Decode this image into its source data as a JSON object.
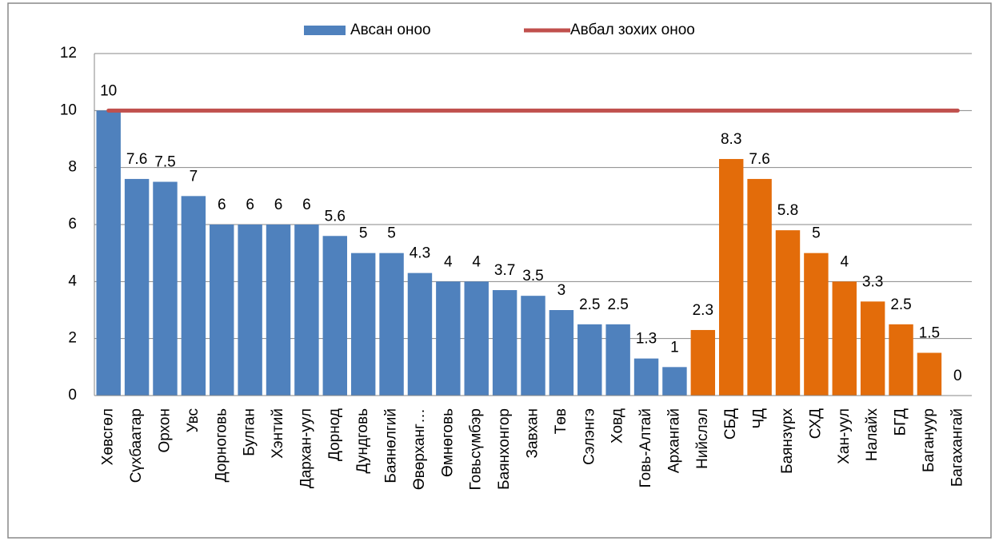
{
  "chart_data": {
    "type": "bar",
    "categories": [
      "Хөвсгөл",
      "Сүхбаатар",
      "Орхон",
      "Увс",
      "Дорноговь",
      "Булган",
      "Хэнтий",
      "Дархан-уул",
      "Дорнод",
      "Дундговь",
      "Баянөлгий",
      "Өвөрханг…",
      "Өмнөговь",
      "Говьсүмбэр",
      "Баянхонгор",
      "Завхан",
      "Төв",
      "Сэлэнгэ",
      "Ховд",
      "Говь-Алтай",
      "Архангай",
      "Нийслэл",
      "СБД",
      "ЧД",
      "Баянзүрх",
      "СХД",
      "Хан-уул",
      "Налайх",
      "БГД",
      "Багануур",
      "Багахангай"
    ],
    "series": [
      {
        "name": "Авсан оноо",
        "type": "bar",
        "color": "#4f81bd",
        "colors": [
          "#4f81bd",
          "#4f81bd",
          "#4f81bd",
          "#4f81bd",
          "#4f81bd",
          "#4f81bd",
          "#4f81bd",
          "#4f81bd",
          "#4f81bd",
          "#4f81bd",
          "#4f81bd",
          "#4f81bd",
          "#4f81bd",
          "#4f81bd",
          "#4f81bd",
          "#4f81bd",
          "#4f81bd",
          "#4f81bd",
          "#4f81bd",
          "#4f81bd",
          "#4f81bd",
          "#e36c0a",
          "#e36c0a",
          "#e36c0a",
          "#e36c0a",
          "#e36c0a",
          "#e36c0a",
          "#e36c0a",
          "#e36c0a",
          "#e36c0a",
          "#e36c0a"
        ],
        "values": [
          10,
          7.6,
          7.5,
          7,
          6,
          6,
          6,
          6,
          5.6,
          5,
          5,
          4.3,
          4,
          4,
          3.7,
          3.5,
          3,
          2.5,
          2.5,
          1.3,
          1,
          2.3,
          8.3,
          7.6,
          5.8,
          5,
          4,
          3.3,
          2.5,
          1.5,
          0
        ]
      },
      {
        "name": "Авбал зохих оноо",
        "type": "line",
        "color": "#c0504d",
        "values": [
          10,
          10,
          10,
          10,
          10,
          10,
          10,
          10,
          10,
          10,
          10,
          10,
          10,
          10,
          10,
          10,
          10,
          10,
          10,
          10,
          10,
          10,
          10,
          10,
          10,
          10,
          10,
          10,
          10,
          10,
          10
        ]
      }
    ],
    "ylim": [
      0,
      12
    ],
    "yticks": [
      0,
      2,
      4,
      6,
      8,
      10,
      12
    ],
    "grid": true,
    "legend": "top"
  }
}
